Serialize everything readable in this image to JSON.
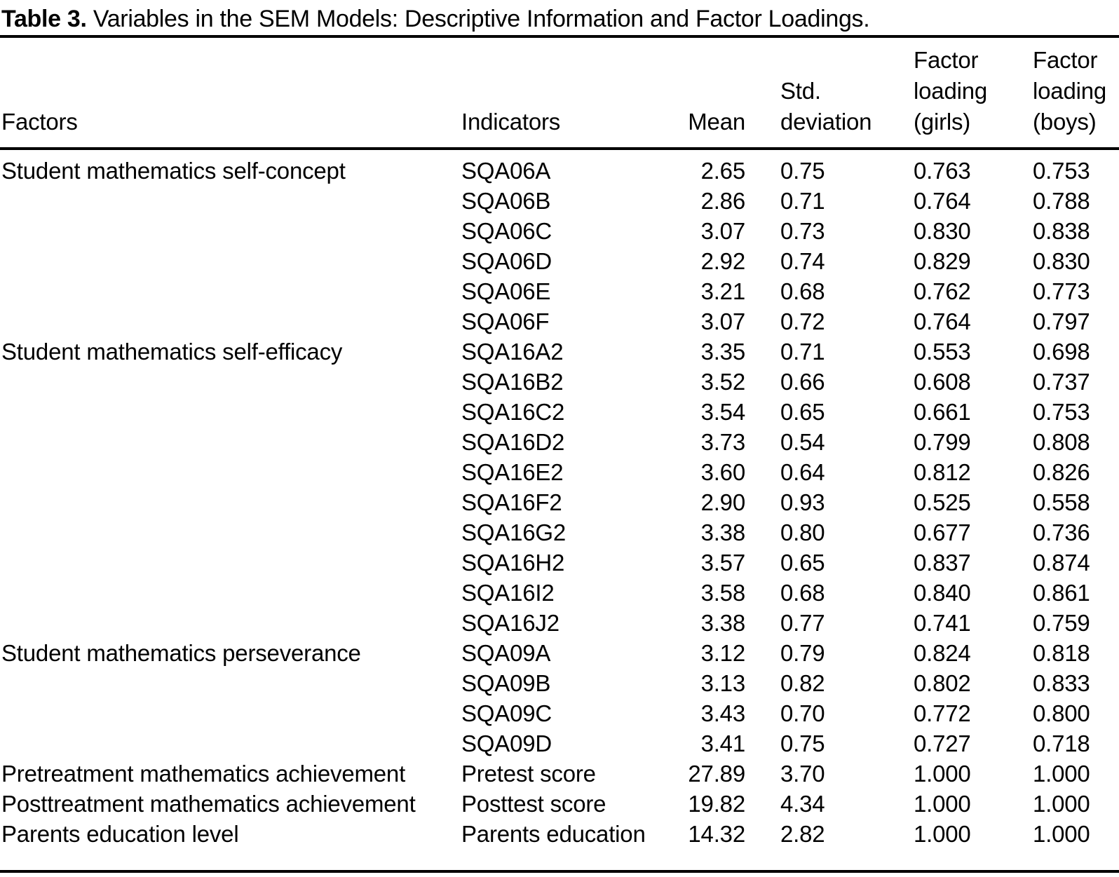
{
  "title": {
    "bold_label": "Table 3.",
    "rest": " Variables in the SEM Models: Descriptive Information and Factor Loadings."
  },
  "table": {
    "columns": [
      "Factors",
      "Indicators",
      "Mean",
      "Std.\ndeviation",
      "Factor\nloading\n(girls)",
      "Factor\nloading\n(boys)"
    ],
    "rows": [
      {
        "factor": "Student mathematics self-concept",
        "indicator": "SQA06A",
        "mean": "2.65",
        "sd": "0.75",
        "girls": "0.763",
        "boys": "0.753"
      },
      {
        "factor": "",
        "indicator": "SQA06B",
        "mean": "2.86",
        "sd": "0.71",
        "girls": "0.764",
        "boys": "0.788"
      },
      {
        "factor": "",
        "indicator": "SQA06C",
        "mean": "3.07",
        "sd": "0.73",
        "girls": "0.830",
        "boys": "0.838"
      },
      {
        "factor": "",
        "indicator": "SQA06D",
        "mean": "2.92",
        "sd": "0.74",
        "girls": "0.829",
        "boys": "0.830"
      },
      {
        "factor": "",
        "indicator": "SQA06E",
        "mean": "3.21",
        "sd": "0.68",
        "girls": "0.762",
        "boys": "0.773"
      },
      {
        "factor": "",
        "indicator": "SQA06F",
        "mean": "3.07",
        "sd": "0.72",
        "girls": "0.764",
        "boys": "0.797"
      },
      {
        "factor": "Student mathematics self-efficacy",
        "indicator": "SQA16A2",
        "mean": "3.35",
        "sd": "0.71",
        "girls": "0.553",
        "boys": "0.698"
      },
      {
        "factor": "",
        "indicator": "SQA16B2",
        "mean": "3.52",
        "sd": "0.66",
        "girls": "0.608",
        "boys": "0.737"
      },
      {
        "factor": "",
        "indicator": "SQA16C2",
        "mean": "3.54",
        "sd": "0.65",
        "girls": "0.661",
        "boys": "0.753"
      },
      {
        "factor": "",
        "indicator": "SQA16D2",
        "mean": "3.73",
        "sd": "0.54",
        "girls": "0.799",
        "boys": "0.808"
      },
      {
        "factor": "",
        "indicator": "SQA16E2",
        "mean": "3.60",
        "sd": "0.64",
        "girls": "0.812",
        "boys": "0.826"
      },
      {
        "factor": "",
        "indicator": "SQA16F2",
        "mean": "2.90",
        "sd": "0.93",
        "girls": "0.525",
        "boys": "0.558"
      },
      {
        "factor": "",
        "indicator": "SQA16G2",
        "mean": "3.38",
        "sd": "0.80",
        "girls": "0.677",
        "boys": "0.736"
      },
      {
        "factor": "",
        "indicator": "SQA16H2",
        "mean": "3.57",
        "sd": "0.65",
        "girls": "0.837",
        "boys": "0.874"
      },
      {
        "factor": "",
        "indicator": "SQA16I2",
        "mean": "3.58",
        "sd": "0.68",
        "girls": "0.840",
        "boys": "0.861"
      },
      {
        "factor": "",
        "indicator": "SQA16J2",
        "mean": "3.38",
        "sd": "0.77",
        "girls": "0.741",
        "boys": "0.759"
      },
      {
        "factor": "Student mathematics perseverance",
        "indicator": "SQA09A",
        "mean": "3.12",
        "sd": "0.79",
        "girls": "0.824",
        "boys": "0.818"
      },
      {
        "factor": "",
        "indicator": "SQA09B",
        "mean": "3.13",
        "sd": "0.82",
        "girls": "0.802",
        "boys": "0.833"
      },
      {
        "factor": "",
        "indicator": "SQA09C",
        "mean": "3.43",
        "sd": "0.70",
        "girls": "0.772",
        "boys": "0.800"
      },
      {
        "factor": "",
        "indicator": "SQA09D",
        "mean": "3.41",
        "sd": "0.75",
        "girls": "0.727",
        "boys": "0.718"
      },
      {
        "factor": "Pretreatment mathematics achievement",
        "indicator": "Pretest score",
        "mean": "27.89",
        "sd": "3.70",
        "girls": "1.000",
        "boys": "1.000"
      },
      {
        "factor": "Posttreatment mathematics achievement",
        "indicator": "Posttest score",
        "mean": "19.82",
        "sd": "4.34",
        "girls": "1.000",
        "boys": "1.000"
      },
      {
        "factor": "Parents education level",
        "indicator": "Parents education",
        "mean": "14.32",
        "sd": "2.82",
        "girls": "1.000",
        "boys": "1.000"
      }
    ]
  }
}
